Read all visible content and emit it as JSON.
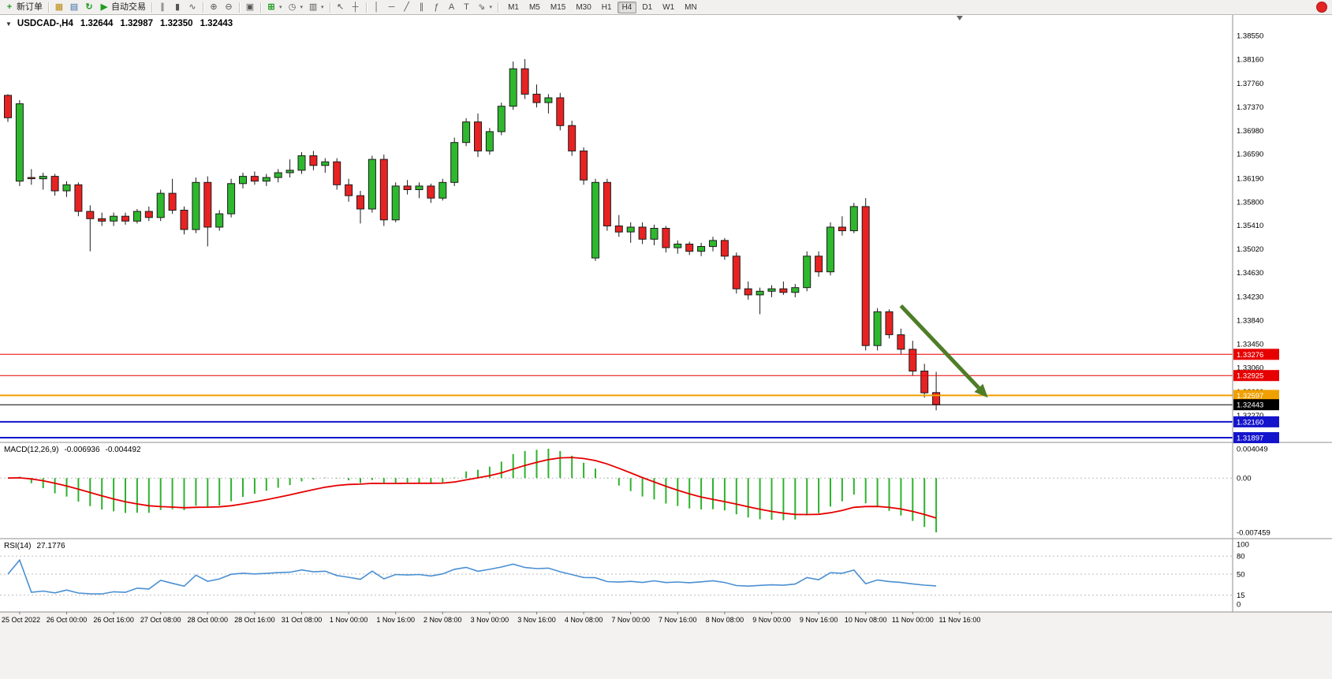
{
  "toolbar": {
    "new_order_label": "新订单",
    "auto_trading_label": "自动交易",
    "timeframes": {
      "items": [
        "M1",
        "M5",
        "M15",
        "M30",
        "H1",
        "H4",
        "D1",
        "W1",
        "MN"
      ],
      "active": "H4"
    },
    "icons": {
      "new_order": "+",
      "new_chart": "▦",
      "profiles": "▤",
      "refresh": "↻",
      "auto_trading": "▶",
      "bar_chart": "∥",
      "candle_chart": "▮",
      "line_chart": "∿",
      "zoom_in": "⊕",
      "zoom_out": "⊖",
      "tile_windows": "▣",
      "indicators": "⊞",
      "periods": "◷",
      "templates": "▥",
      "cursor": "↖",
      "crosshair": "┼",
      "vertical_line": "│",
      "horizontal_line": "─",
      "trendline": "╱",
      "channel": "∥",
      "fibonacci": "ƒ",
      "text": "A",
      "text_label": "T",
      "arrow_tool": "⇘",
      "dropdown": "▾",
      "one_click_toggle": "▼"
    }
  },
  "chart_header": {
    "symbol_period": "USDCAD-,H4",
    "open": "1.32644",
    "high": "1.32987",
    "low": "1.32350",
    "close": "1.32443"
  },
  "indicators": {
    "macd": {
      "label": "MACD(12,26,9)",
      "main_value": "-0.006936",
      "signal_value": "-0.004492",
      "axis": [
        "0.004049",
        "0.00",
        "-0.007459"
      ]
    },
    "rsi": {
      "label": "RSI(14)",
      "value": "27.1776",
      "axis": [
        "100",
        "80",
        "50",
        "15",
        "0"
      ],
      "levels": [
        80,
        50,
        15
      ]
    }
  },
  "price_axis": {
    "ticks": [
      "1.38550",
      "1.38160",
      "1.37760",
      "1.37370",
      "1.36980",
      "1.36590",
      "1.36190",
      "1.35800",
      "1.35410",
      "1.35020",
      "1.34630",
      "1.34230",
      "1.33840",
      "1.33450",
      "1.33060",
      "1.32660",
      "1.32270"
    ]
  },
  "objects": {
    "hlines": [
      {
        "price": 1.33276,
        "label": "1.33276",
        "color": "#e60000",
        "width": 1
      },
      {
        "price": 1.32925,
        "label": "1.32925",
        "color": "#e60000",
        "width": 1
      },
      {
        "price": 1.32597,
        "label": "1.32597",
        "color": "#f0a000",
        "width": 2
      },
      {
        "price": 1.32443,
        "label": "1.32443",
        "color": "#000000",
        "width": 1
      },
      {
        "price": 1.3216,
        "label": "1.32160",
        "color": "#1414cc",
        "width": 2
      },
      {
        "price": 1.31897,
        "label": "1.31897",
        "color": "#1414cc",
        "width": 2
      }
    ],
    "arrow": {
      "from_bar": 76,
      "from_price": 1.3408,
      "to_bar": 83.4,
      "to_price": 1.3256,
      "color": "#4e7d28",
      "width": 5
    }
  },
  "colors": {
    "bull": "#2eb82e",
    "bear": "#e82222",
    "wick": "#1b1b1b",
    "macd_hist": "#2db22d",
    "macd_signal": "#e60000",
    "rsi": "#4a8fd2"
  },
  "chart_data": {
    "type": "candlestick",
    "title": "USDCAD-,H4",
    "symbol": "USDCAD-",
    "timeframe": "H4",
    "ylim": [
      1.31819,
      1.38889
    ],
    "bars_per_label": 4,
    "first_label_bar_index": 1,
    "shift_marker_bar": 81,
    "time_labels": [
      "25 Oct 2022",
      "26 Oct 00:00",
      "26 Oct 16:00",
      "27 Oct 08:00",
      "28 Oct 00:00",
      "28 Oct 16:00",
      "31 Oct 08:00",
      "1 Nov 00:00",
      "1 Nov 16:00",
      "2 Nov 08:00",
      "3 Nov 00:00",
      "3 Nov 16:00",
      "4 Nov 08:00",
      "7 Nov 00:00",
      "7 Nov 16:00",
      "8 Nov 08:00",
      "9 Nov 00:00",
      "9 Nov 16:00",
      "10 Nov 08:00",
      "11 Nov 00:00",
      "11 Nov 16:00"
    ],
    "candles": [
      [
        1.3756,
        1.3758,
        1.3712,
        1.3719
      ],
      [
        1.3614,
        1.3748,
        1.3606,
        1.3742
      ],
      [
        1.362,
        1.3634,
        1.3608,
        1.3618
      ],
      [
        1.3618,
        1.3628,
        1.36,
        1.3622
      ],
      [
        1.3622,
        1.3626,
        1.359,
        1.3598
      ],
      [
        1.3598,
        1.3614,
        1.3588,
        1.3608
      ],
      [
        1.3608,
        1.3612,
        1.3556,
        1.3564
      ],
      [
        1.3564,
        1.3574,
        1.3498,
        1.3552
      ],
      [
        1.3552,
        1.3562,
        1.354,
        1.3548
      ],
      [
        1.3548,
        1.3562,
        1.354,
        1.3556
      ],
      [
        1.3556,
        1.3562,
        1.3542,
        1.3548
      ],
      [
        1.3548,
        1.3568,
        1.3544,
        1.3564
      ],
      [
        1.3564,
        1.3572,
        1.3548,
        1.3554
      ],
      [
        1.3554,
        1.36,
        1.3548,
        1.3594
      ],
      [
        1.3594,
        1.3618,
        1.356,
        1.3566
      ],
      [
        1.3566,
        1.3572,
        1.3526,
        1.3534
      ],
      [
        1.3534,
        1.362,
        1.3528,
        1.3612
      ],
      [
        1.3612,
        1.3622,
        1.3506,
        1.3538
      ],
      [
        1.3538,
        1.3566,
        1.3532,
        1.356
      ],
      [
        1.356,
        1.3618,
        1.3554,
        1.361
      ],
      [
        1.361,
        1.3628,
        1.3602,
        1.3622
      ],
      [
        1.3622,
        1.363,
        1.3608,
        1.3614
      ],
      [
        1.3614,
        1.3626,
        1.3606,
        1.362
      ],
      [
        1.362,
        1.3634,
        1.3612,
        1.3628
      ],
      [
        1.3628,
        1.365,
        1.362,
        1.3632
      ],
      [
        1.3632,
        1.3662,
        1.3626,
        1.3656
      ],
      [
        1.3656,
        1.3664,
        1.3632,
        1.364
      ],
      [
        1.364,
        1.3652,
        1.3628,
        1.3646
      ],
      [
        1.3646,
        1.3652,
        1.36,
        1.3608
      ],
      [
        1.3608,
        1.3618,
        1.358,
        1.359
      ],
      [
        1.359,
        1.3598,
        1.3544,
        1.3568
      ],
      [
        1.3568,
        1.3656,
        1.3562,
        1.365
      ],
      [
        1.365,
        1.3658,
        1.354,
        1.355
      ],
      [
        1.355,
        1.3612,
        1.3546,
        1.3606
      ],
      [
        1.3606,
        1.3616,
        1.3592,
        1.36
      ],
      [
        1.36,
        1.3612,
        1.3586,
        1.3606
      ],
      [
        1.3606,
        1.361,
        1.3578,
        1.3586
      ],
      [
        1.3586,
        1.3618,
        1.3582,
        1.3612
      ],
      [
        1.3612,
        1.3686,
        1.3606,
        1.3678
      ],
      [
        1.3678,
        1.3718,
        1.3672,
        1.3712
      ],
      [
        1.3712,
        1.3726,
        1.3654,
        1.3664
      ],
      [
        1.3664,
        1.3702,
        1.3658,
        1.3696
      ],
      [
        1.3696,
        1.3744,
        1.369,
        1.3738
      ],
      [
        1.3738,
        1.3812,
        1.3732,
        1.38
      ],
      [
        1.38,
        1.3816,
        1.375,
        1.3758
      ],
      [
        1.3758,
        1.3774,
        1.3736,
        1.3744
      ],
      [
        1.3744,
        1.3758,
        1.3726,
        1.3752
      ],
      [
        1.3752,
        1.376,
        1.3698,
        1.3706
      ],
      [
        1.3706,
        1.3714,
        1.3656,
        1.3664
      ],
      [
        1.3664,
        1.367,
        1.3608,
        1.3616
      ],
      [
        1.3487,
        1.3618,
        1.3482,
        1.3612
      ],
      [
        1.3612,
        1.3618,
        1.3532,
        1.354
      ],
      [
        1.354,
        1.3558,
        1.3522,
        1.353
      ],
      [
        1.353,
        1.3546,
        1.3512,
        1.3538
      ],
      [
        1.3538,
        1.3546,
        1.351,
        1.3518
      ],
      [
        1.3518,
        1.3542,
        1.3508,
        1.3536
      ],
      [
        1.3536,
        1.354,
        1.3496,
        1.3504
      ],
      [
        1.3504,
        1.3516,
        1.3494,
        1.351
      ],
      [
        1.351,
        1.3514,
        1.3492,
        1.3498
      ],
      [
        1.3498,
        1.3512,
        1.349,
        1.3506
      ],
      [
        1.3506,
        1.3522,
        1.3498,
        1.3516
      ],
      [
        1.3516,
        1.352,
        1.3484,
        1.349
      ],
      [
        1.349,
        1.3496,
        1.3428,
        1.3436
      ],
      [
        1.3436,
        1.3448,
        1.3418,
        1.3426
      ],
      [
        1.3426,
        1.3438,
        1.3394,
        1.3432
      ],
      [
        1.3432,
        1.3442,
        1.3422,
        1.3436
      ],
      [
        1.3436,
        1.3448,
        1.3426,
        1.343
      ],
      [
        1.343,
        1.3444,
        1.3422,
        1.3438
      ],
      [
        1.3438,
        1.3498,
        1.3432,
        1.349
      ],
      [
        1.349,
        1.3498,
        1.3456,
        1.3464
      ],
      [
        1.3464,
        1.3546,
        1.3458,
        1.3538
      ],
      [
        1.3538,
        1.3556,
        1.3524,
        1.3532
      ],
      [
        1.3532,
        1.3578,
        1.3528,
        1.3572
      ],
      [
        1.3572,
        1.3586,
        1.3334,
        1.3342
      ],
      [
        1.3342,
        1.3404,
        1.3334,
        1.3398
      ],
      [
        1.3398,
        1.3402,
        1.3354,
        1.336
      ],
      [
        1.336,
        1.337,
        1.3328,
        1.3336
      ],
      [
        1.3336,
        1.335,
        1.3292,
        1.33
      ],
      [
        1.33,
        1.3312,
        1.3256,
        1.3264
      ],
      [
        1.32644,
        1.32987,
        1.3235,
        1.32443
      ]
    ]
  }
}
